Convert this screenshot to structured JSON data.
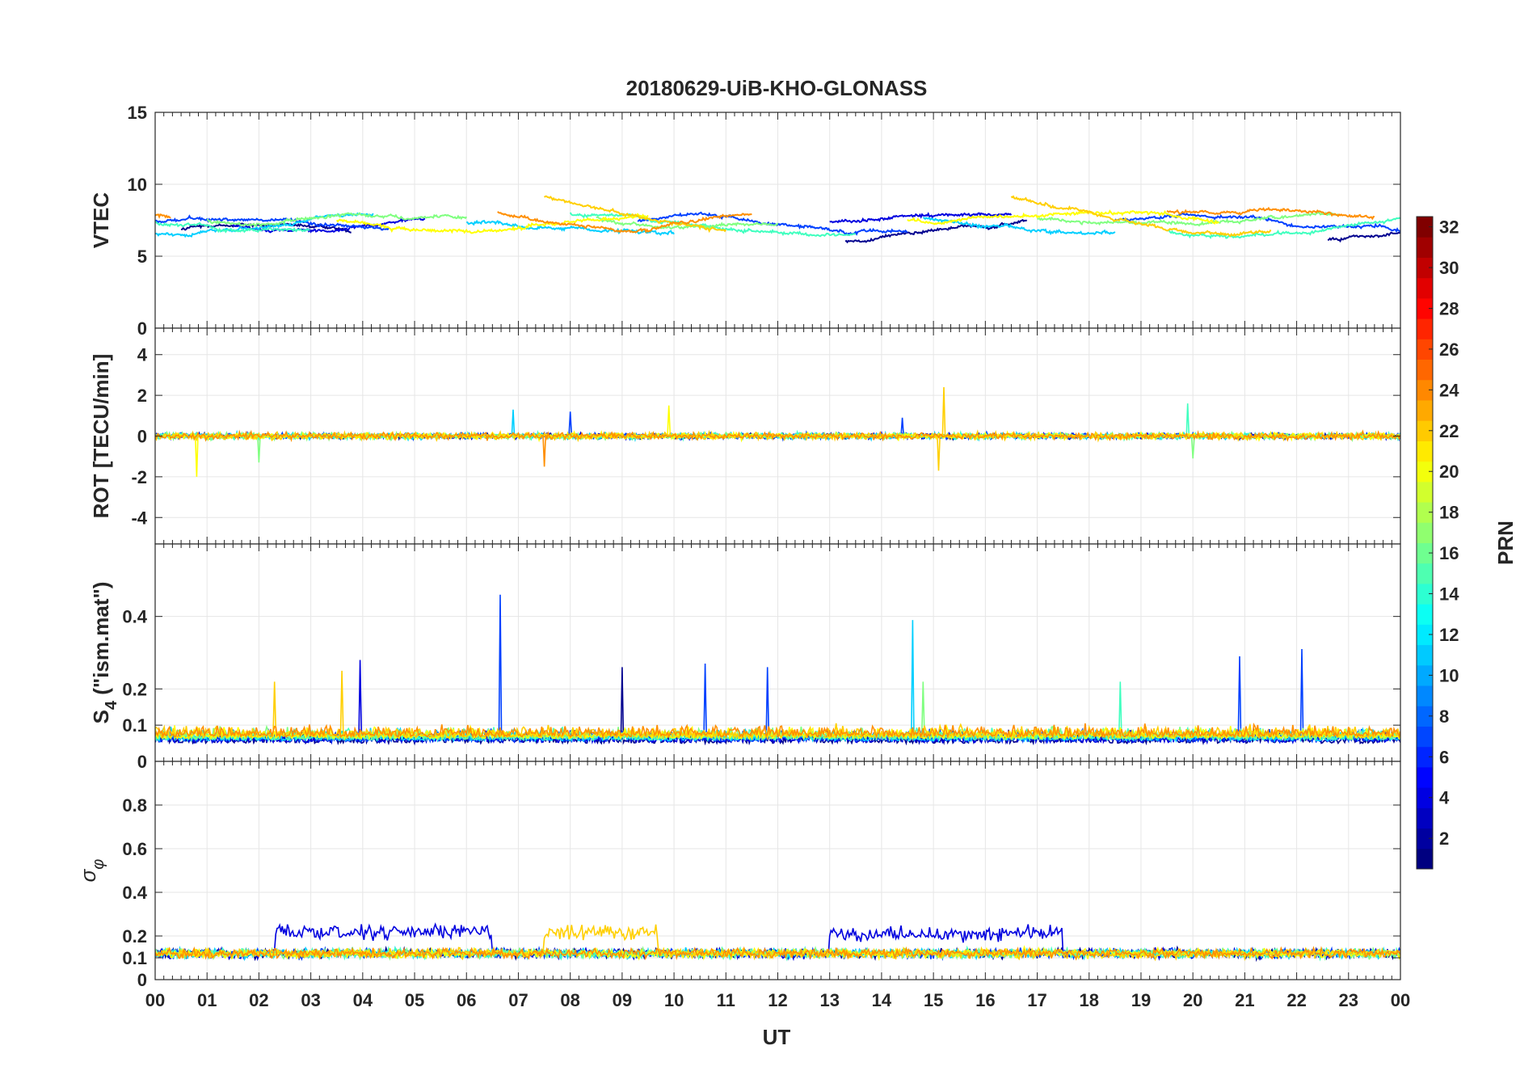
{
  "chart_data": {
    "type": "line",
    "title": "20180629-UiB-KHO-GLONASS",
    "xlabel": "UT",
    "x_ticks": [
      "00",
      "01",
      "02",
      "03",
      "04",
      "05",
      "06",
      "07",
      "08",
      "09",
      "10",
      "11",
      "12",
      "13",
      "14",
      "15",
      "16",
      "17",
      "18",
      "19",
      "20",
      "21",
      "22",
      "23",
      "00"
    ],
    "xlim_hours": [
      0,
      24
    ],
    "panels": [
      {
        "name": "VTEC",
        "ylabel": "VTEC",
        "ylim": [
          0,
          15
        ],
        "yticks": [
          0,
          5,
          10,
          15
        ],
        "ytick_labels": [
          "0",
          "5",
          "10",
          "15"
        ],
        "baseline": 7.2,
        "amplitude": 0.9,
        "noise": 0.35,
        "series": [
          {
            "prn": 1,
            "color": "#00008f",
            "hours": [
              [
                0.5,
                3.8
              ],
              [
                13.3,
                16.8
              ],
              [
                22.6,
                24
              ]
            ],
            "level": 6.6
          },
          {
            "prn": 3,
            "color": "#0000df",
            "hours": [
              [
                1.5,
                5.2
              ],
              [
                13.0,
                16.5
              ]
            ],
            "level": 7.8
          },
          {
            "prn": 7,
            "color": "#0040ff",
            "hours": [
              [
                0,
                4.5
              ],
              [
                9.3,
                14.5
              ],
              [
                18.5,
                24
              ]
            ],
            "level": 7.0
          },
          {
            "prn": 11,
            "color": "#00cfff",
            "hours": [
              [
                0,
                4.2
              ],
              [
                6.0,
                10.0
              ],
              [
                14.8,
                18.5
              ]
            ],
            "level": 7.3
          },
          {
            "prn": 15,
            "color": "#40ffbf",
            "hours": [
              [
                0,
                3.0
              ],
              [
                8.0,
                13.5
              ],
              [
                19.5,
                24
              ]
            ],
            "level": 7.1
          },
          {
            "prn": 17,
            "color": "#80ff80",
            "hours": [
              [
                1.0,
                6.0
              ],
              [
                8.5,
                12.0
              ],
              [
                17.0,
                22.8
              ]
            ],
            "level": 7.8
          },
          {
            "prn": 20,
            "color": "#ffff00",
            "hours": [
              [
                3.5,
                9.5
              ],
              [
                14.5,
                20.5
              ]
            ],
            "level": 8.0
          },
          {
            "prn": 22,
            "color": "#ffcf00",
            "hours": [
              [
                7.5,
                11.0
              ],
              [
                16.5,
                21.5
              ]
            ],
            "level": 8.6
          },
          {
            "prn": 24,
            "color": "#ff8f00",
            "hours": [
              [
                0,
                0.3
              ],
              [
                6.6,
                11.5
              ],
              [
                19.5,
                23.5
              ]
            ],
            "level": 8.2
          }
        ]
      },
      {
        "name": "ROT",
        "ylabel": "ROT [TECU/min]",
        "ylim": [
          -5.3,
          5.3
        ],
        "yticks": [
          -4,
          -2,
          0,
          2,
          4
        ],
        "ytick_labels": [
          "-4",
          "-2",
          "0",
          "2",
          "4"
        ],
        "baseline": 0,
        "noise": 0.18,
        "spikes": [
          {
            "h": 0.8,
            "v": -2.0
          },
          {
            "h": 2.0,
            "v": -1.3
          },
          {
            "h": 6.9,
            "v": 1.3
          },
          {
            "h": 7.5,
            "v": -1.5
          },
          {
            "h": 8.0,
            "v": 1.2
          },
          {
            "h": 9.9,
            "v": 1.5
          },
          {
            "h": 15.2,
            "v": 2.4
          },
          {
            "h": 15.1,
            "v": -1.7
          },
          {
            "h": 19.9,
            "v": 1.6
          },
          {
            "h": 20.0,
            "v": -1.1
          },
          {
            "h": 14.4,
            "v": 0.9
          }
        ]
      },
      {
        "name": "S4",
        "ylabel": "S4 (\"ism.mat\")",
        "ylabel_base": "S",
        "ylabel_sub": "4",
        "ylabel_rest": " (\"ism.mat\")",
        "ylim": [
          0,
          0.6
        ],
        "yticks": [
          0,
          0.1,
          0.2,
          0.4
        ],
        "ytick_labels": [
          "0",
          "0.1",
          "0.2",
          "0.4"
        ],
        "baseline": 0.05,
        "noise": 0.02,
        "spikes": [
          {
            "h": 6.65,
            "v": 0.46
          },
          {
            "h": 14.6,
            "v": 0.39
          },
          {
            "h": 3.95,
            "v": 0.28
          },
          {
            "h": 22.1,
            "v": 0.31
          },
          {
            "h": 10.6,
            "v": 0.27
          },
          {
            "h": 20.9,
            "v": 0.29
          },
          {
            "h": 2.3,
            "v": 0.22
          },
          {
            "h": 11.8,
            "v": 0.26
          },
          {
            "h": 9.0,
            "v": 0.26
          },
          {
            "h": 3.6,
            "v": 0.25
          },
          {
            "h": 14.8,
            "v": 0.22
          },
          {
            "h": 18.6,
            "v": 0.22
          }
        ]
      },
      {
        "name": "sigma_phi",
        "ylabel": "σφ",
        "ylabel_base": "σ",
        "ylabel_sub": "φ",
        "ylim": [
          0,
          1.0
        ],
        "yticks": [
          0,
          0.1,
          0.2,
          0.4,
          0.6,
          0.8
        ],
        "ytick_labels": [
          "0",
          "0.1",
          "0.2",
          "0.4",
          "0.6",
          "0.8"
        ],
        "baseline": 0.12,
        "noise": 0.03,
        "elevated": [
          {
            "from": 2.3,
            "to": 6.5,
            "level": 0.22,
            "color": "#0000df"
          },
          {
            "from": 7.5,
            "to": 9.7,
            "level": 0.22,
            "color": "#ffcf00"
          },
          {
            "from": 13.0,
            "to": 17.5,
            "level": 0.21,
            "color": "#0000df"
          }
        ]
      }
    ],
    "colorbar": {
      "label": "PRN",
      "range": [
        1,
        32
      ],
      "ticks": [
        2,
        4,
        6,
        8,
        10,
        12,
        14,
        16,
        18,
        20,
        22,
        24,
        26,
        28,
        30,
        32
      ],
      "tick_labels": [
        "2",
        "4",
        "6",
        "8",
        "10",
        "12",
        "14",
        "16",
        "18",
        "20",
        "22",
        "24",
        "26",
        "28",
        "30",
        "32"
      ],
      "colormap": "jet"
    },
    "line_colors": [
      "#00008f",
      "#0000df",
      "#0040ff",
      "#00cfff",
      "#40ffbf",
      "#80ff80",
      "#ffff00",
      "#ffcf00",
      "#ff8f00"
    ]
  }
}
